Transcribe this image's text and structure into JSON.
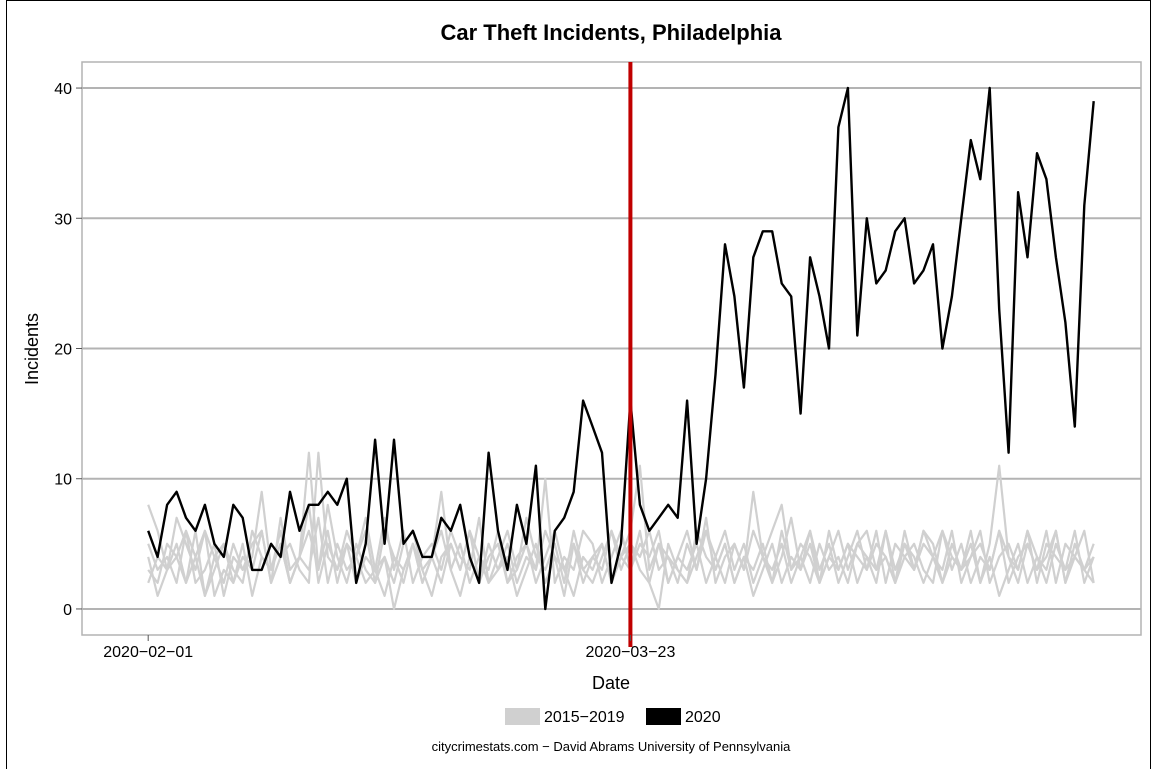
{
  "chart_data": {
    "type": "line",
    "title": "Car Theft Incidents, Philadelphia",
    "xlabel": "Date",
    "ylabel": "Incidents",
    "x_start_date": "2020-02-01",
    "x_ticks": [
      {
        "label": "2020−02−01",
        "day": 0
      },
      {
        "label": "2020−03−23",
        "day": 51
      }
    ],
    "xlim_days": [
      -7,
      105
    ],
    "ylim": [
      -2,
      42
    ],
    "y_ticks": [
      0,
      10,
      20,
      30,
      40
    ],
    "grid": true,
    "vline": {
      "day": 51,
      "color": "#c00000"
    },
    "legend": {
      "placement": "bottom",
      "entries": [
        {
          "label": "2015−2019",
          "color": "#d0d0d0"
        },
        {
          "label": "2020",
          "color": "#000000"
        }
      ]
    },
    "caption": "citycrimestats.com −  David Abrams University of Pennsylvania",
    "series": [
      {
        "name": "2020",
        "color": "#000000",
        "values": [
          6,
          4,
          8,
          9,
          7,
          6,
          8,
          5,
          4,
          8,
          7,
          3,
          3,
          5,
          4,
          9,
          6,
          8,
          8,
          9,
          8,
          10,
          2,
          5,
          13,
          5,
          13,
          5,
          6,
          4,
          4,
          7,
          6,
          8,
          4,
          2,
          12,
          6,
          3,
          8,
          5,
          11,
          0,
          6,
          7,
          9,
          16,
          14,
          12,
          2,
          5,
          16,
          8,
          6,
          7,
          8,
          7,
          16,
          5,
          10,
          18,
          28,
          24,
          17,
          27,
          29,
          29,
          25,
          24,
          15,
          27,
          24,
          20,
          37,
          40,
          21,
          30,
          25,
          26,
          29,
          30,
          25,
          26,
          28,
          20,
          24,
          30,
          36,
          33,
          40,
          23,
          12,
          32,
          27,
          35,
          33,
          27,
          22,
          14,
          31,
          39
        ]
      },
      {
        "name": "2015",
        "color": "#d0d0d0",
        "values": [
          8,
          6,
          3,
          4,
          6,
          2,
          3,
          5,
          1,
          4,
          3,
          5,
          6,
          2,
          7,
          3,
          4,
          8,
          2,
          5,
          3,
          6,
          4,
          2,
          3,
          7,
          3,
          6,
          2,
          4,
          5,
          3,
          6,
          4,
          3,
          7,
          2,
          4,
          6,
          3,
          5,
          2,
          4,
          6,
          3,
          5,
          2,
          4,
          3,
          6,
          3,
          5,
          4,
          6,
          3,
          4,
          2,
          5,
          3,
          6,
          4,
          2,
          5,
          3,
          6,
          4,
          3,
          5,
          2,
          4,
          6,
          3,
          5,
          2,
          4,
          6,
          3,
          5,
          4,
          2,
          6,
          3,
          5,
          4,
          3,
          6,
          2,
          4,
          5,
          3,
          6,
          2,
          4,
          5,
          3,
          6,
          2,
          5,
          4,
          3,
          5
        ]
      },
      {
        "name": "2016",
        "color": "#d0d0d0",
        "values": [
          3,
          2,
          5,
          4,
          2,
          6,
          1,
          4,
          5,
          3,
          2,
          6,
          4,
          3,
          5,
          2,
          4,
          12,
          3,
          6,
          2,
          5,
          4,
          7,
          3,
          4,
          2,
          5,
          6,
          3,
          1,
          4,
          5,
          3,
          6,
          2,
          4,
          5,
          2,
          3,
          7,
          4,
          3,
          5,
          2,
          6,
          3,
          4,
          5,
          2,
          4,
          6,
          11,
          3,
          5,
          2,
          4,
          6,
          3,
          7,
          2,
          4,
          5,
          3,
          9,
          4,
          2,
          6,
          3,
          5,
          4,
          2,
          6,
          3,
          5,
          4,
          3,
          6,
          2,
          5,
          4,
          3,
          6,
          5,
          2,
          4,
          3,
          6,
          2,
          5,
          11,
          4,
          3,
          6,
          2,
          5,
          4,
          3,
          6,
          2,
          4
        ]
      },
      {
        "name": "2017",
        "color": "#d0d0d0",
        "values": [
          2,
          4,
          3,
          7,
          5,
          3,
          6,
          4,
          2,
          5,
          3,
          4,
          9,
          3,
          5,
          2,
          4,
          6,
          3,
          8,
          4,
          2,
          5,
          3,
          2,
          6,
          4,
          3,
          5,
          2,
          4,
          9,
          3,
          5,
          2,
          4,
          3,
          6,
          2,
          4,
          5,
          3,
          10,
          2,
          4,
          3,
          6,
          5,
          2,
          4,
          6,
          3,
          5,
          4,
          6,
          2,
          4,
          3,
          5,
          2,
          4,
          6,
          3,
          5,
          2,
          4,
          6,
          8,
          3,
          4,
          2,
          5,
          3,
          4,
          2,
          5,
          6,
          3,
          4,
          2,
          5,
          3,
          6,
          4,
          2,
          5,
          3,
          4,
          6,
          2,
          4,
          5,
          3,
          6,
          4,
          2,
          5,
          3,
          4,
          6,
          2
        ]
      },
      {
        "name": "2018",
        "color": "#d0d0d0",
        "values": [
          5,
          3,
          4,
          2,
          6,
          4,
          1,
          3,
          5,
          2,
          4,
          3,
          6,
          2,
          4,
          5,
          3,
          2,
          12,
          4,
          3,
          5,
          2,
          4,
          3,
          1,
          4,
          2,
          5,
          3,
          4,
          2,
          5,
          3,
          6,
          4,
          2,
          3,
          5,
          2,
          4,
          3,
          6,
          4,
          1,
          5,
          3,
          2,
          4,
          6,
          4,
          5,
          3,
          2,
          5,
          4,
          3,
          2,
          6,
          4,
          3,
          5,
          2,
          4,
          3,
          5,
          2,
          4,
          7,
          3,
          5,
          2,
          4,
          6,
          3,
          5,
          4,
          2,
          6,
          3,
          5,
          4,
          2,
          4,
          6,
          3,
          5,
          2,
          4,
          3,
          6,
          4,
          2,
          5,
          3,
          4,
          6,
          2,
          5,
          3,
          4
        ]
      },
      {
        "name": "2019",
        "color": "#d0d0d0",
        "values": [
          4,
          1,
          3,
          5,
          2,
          4,
          6,
          1,
          3,
          2,
          5,
          1,
          4,
          3,
          6,
          2,
          4,
          3,
          7,
          2,
          5,
          3,
          4,
          6,
          2,
          4,
          0,
          3,
          5,
          2,
          4,
          6,
          3,
          1,
          4,
          2,
          5,
          3,
          4,
          1,
          3,
          5,
          2,
          4,
          3,
          1,
          4,
          3,
          5,
          2,
          4,
          3,
          6,
          2,
          0,
          5,
          3,
          2,
          4,
          6,
          3,
          5,
          2,
          4,
          1,
          3,
          5,
          2,
          4,
          3,
          6,
          2,
          4,
          3,
          5,
          2,
          4,
          3,
          6,
          2,
          4,
          5,
          3,
          2,
          6,
          4,
          3,
          5,
          2,
          4,
          1,
          3,
          5,
          2,
          4,
          3,
          6,
          2,
          4,
          3,
          2
        ]
      }
    ]
  }
}
